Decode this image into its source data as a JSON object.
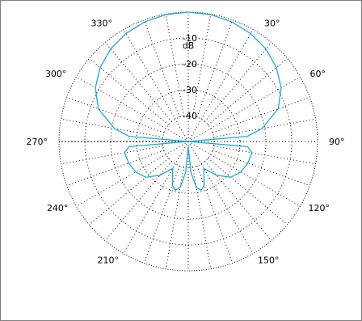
{
  "chart_data": {
    "type": "polar",
    "radial_unit": "dB",
    "radial_ticks": [
      "-10",
      "-20",
      "-30",
      "-40"
    ],
    "radial_tick_values_db": [
      -10,
      -20,
      -30,
      -40
    ],
    "radial_range_db": [
      -50,
      0
    ],
    "angle_direction": "clockwise",
    "angle_zero": "top",
    "angular_ticks": [
      "30°",
      "60°",
      "90°",
      "120°",
      "150°",
      "210°",
      "240°",
      "270°",
      "300°",
      "330°"
    ],
    "angular_tick_values_deg": [
      30,
      60,
      90,
      120,
      150,
      210,
      240,
      270,
      300,
      330
    ],
    "grid": true,
    "series": [
      {
        "color": "#22a7d8",
        "pattern": {
          "angle_deg": [
            0,
            10,
            20,
            30,
            40,
            50,
            60,
            70,
            80,
            85,
            90,
            95,
            100,
            110,
            120,
            130,
            140,
            150,
            160,
            165,
            170,
            175,
            180,
            185,
            190,
            195,
            200,
            210,
            220,
            230,
            240,
            250,
            260,
            265,
            270,
            275,
            280,
            290,
            300,
            310,
            320,
            330,
            340,
            350,
            360
          ],
          "gain_db": [
            0,
            -0.2,
            -0.8,
            -1.8,
            -3.3,
            -5.5,
            -8.5,
            -13,
            -21,
            -27,
            -50,
            -27,
            -25,
            -25.5,
            -26.5,
            -28.5,
            -33,
            -38,
            -32,
            -30.5,
            -32,
            -38,
            -48,
            -38,
            -32,
            -30.5,
            -32,
            -38,
            -33,
            -28.5,
            -26.5,
            -25.5,
            -25,
            -27,
            -50,
            -27,
            -21,
            -13,
            -8.5,
            -5.5,
            -3.3,
            -1.8,
            -0.8,
            -0.2,
            0
          ]
        }
      }
    ]
  }
}
